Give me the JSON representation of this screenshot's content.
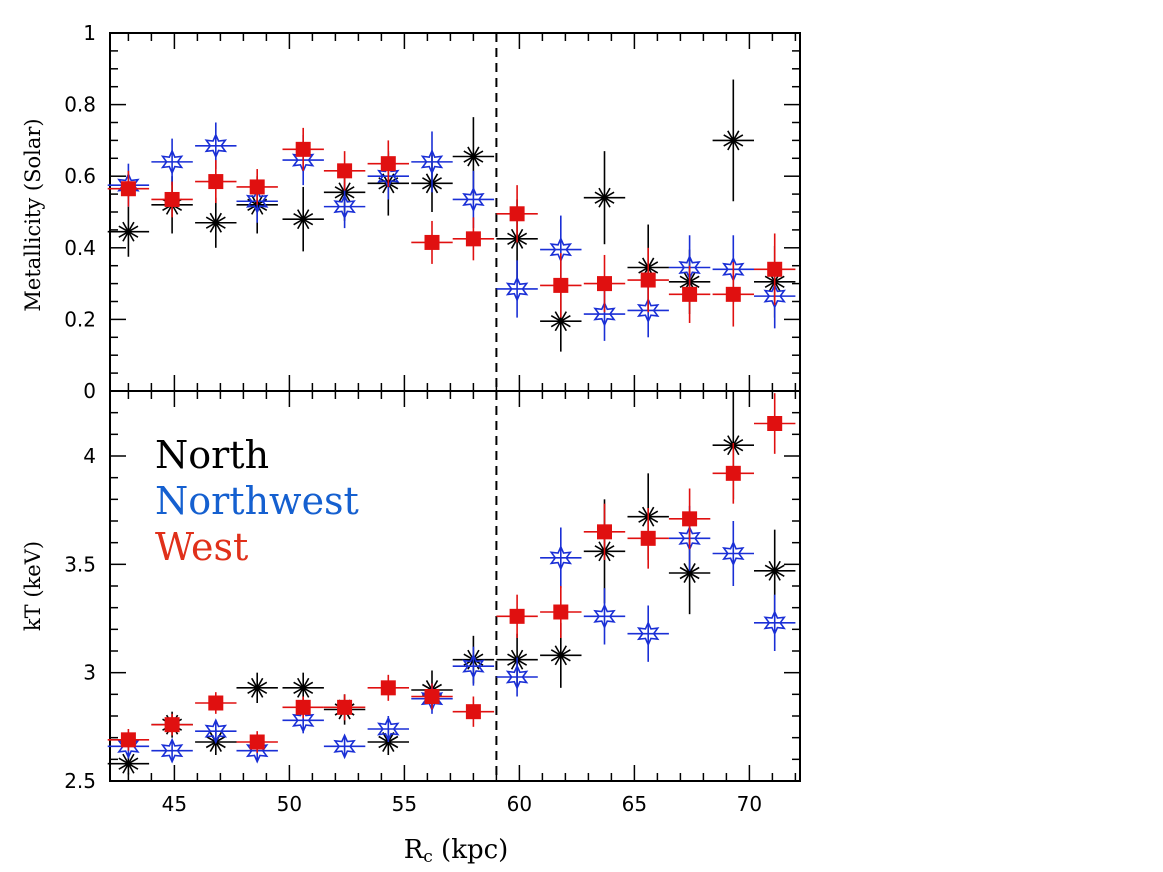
{
  "chart_data": {
    "type": "scatter",
    "x_axis": {
      "label_main": "R",
      "label_sub": "c",
      "label_unit": " (kpc)",
      "xlim": [
        42.2,
        72.2
      ],
      "ticks": [
        45,
        50,
        55,
        60,
        65,
        70
      ],
      "tick_labels": [
        "45",
        "50",
        "55",
        "60",
        "65",
        "70"
      ]
    },
    "vline_x": 59.0,
    "colors": {
      "North": "#000000",
      "Northwest": "#1a2fd6",
      "West": "#e01010"
    },
    "legend": {
      "placement": "upper-left of lower panel",
      "entries": [
        {
          "name": "North",
          "color": "#000000"
        },
        {
          "name": "Northwest",
          "color": "#1560d0"
        },
        {
          "name": "West",
          "color": "#e0301a"
        }
      ]
    },
    "panels": [
      {
        "id": "top",
        "ylabel": "Metallicity (Solar)",
        "ylim": [
          0,
          1
        ],
        "yticks": [
          0,
          0.2,
          0.4,
          0.6,
          0.8,
          1
        ],
        "ytick_labels": [
          "0",
          "0.2",
          "0.4",
          "0.6",
          "0.8",
          "1"
        ],
        "series": [
          {
            "name": "North",
            "marker": "asterisk",
            "color": "#000000",
            "x": [
              43.0,
              44.9,
              46.8,
              48.6,
              50.6,
              52.4,
              54.3,
              56.2,
              58.0,
              59.9,
              61.8,
              63.7,
              65.6,
              67.4,
              69.3,
              71.1
            ],
            "xerr": [
              0.9,
              0.9,
              0.9,
              0.9,
              0.9,
              0.9,
              0.9,
              0.9,
              0.9,
              0.9,
              0.9,
              0.9,
              0.9,
              0.9,
              0.9,
              0.9
            ],
            "y": [
              0.445,
              0.52,
              0.47,
              0.52,
              0.48,
              0.555,
              0.58,
              0.58,
              0.655,
              0.425,
              0.195,
              0.54,
              0.345,
              0.305,
              0.7,
              0.305
            ],
            "yerr": [
              0.07,
              0.08,
              0.07,
              0.08,
              0.09,
              0.08,
              0.09,
              0.08,
              0.11,
              0.11,
              0.085,
              0.13,
              0.12,
              0.09,
              0.17,
              0.1
            ]
          },
          {
            "name": "Northwest",
            "marker": "star",
            "color": "#1a2fd6",
            "x": [
              43.0,
              44.9,
              46.8,
              48.6,
              50.6,
              52.4,
              54.3,
              56.2,
              58.0,
              59.9,
              61.8,
              63.7,
              65.6,
              67.4,
              69.3,
              71.1
            ],
            "xerr": [
              0.9,
              0.9,
              0.9,
              0.9,
              0.9,
              0.9,
              0.9,
              0.9,
              0.9,
              0.9,
              0.9,
              0.9,
              0.9,
              0.9,
              0.9,
              0.9
            ],
            "y": [
              0.575,
              0.64,
              0.685,
              0.53,
              0.645,
              0.515,
              0.6,
              0.64,
              0.535,
              0.285,
              0.395,
              0.215,
              0.225,
              0.345,
              0.34,
              0.265
            ],
            "yerr": [
              0.06,
              0.065,
              0.065,
              0.06,
              0.07,
              0.06,
              0.065,
              0.085,
              0.08,
              0.08,
              0.095,
              0.075,
              0.075,
              0.09,
              0.095,
              0.09
            ]
          },
          {
            "name": "West",
            "marker": "square",
            "color": "#e01010",
            "x": [
              43.0,
              44.9,
              46.8,
              48.6,
              50.6,
              52.4,
              54.3,
              56.2,
              58.0,
              59.9,
              61.8,
              63.7,
              65.6,
              67.4,
              69.3,
              71.1
            ],
            "xerr": [
              0.9,
              0.9,
              0.9,
              0.9,
              0.9,
              0.9,
              0.9,
              0.9,
              0.9,
              0.9,
              0.9,
              0.9,
              0.9,
              0.9,
              0.9,
              0.9
            ],
            "y": [
              0.565,
              0.535,
              0.585,
              0.57,
              0.675,
              0.615,
              0.635,
              0.415,
              0.425,
              0.495,
              0.295,
              0.3,
              0.31,
              0.27,
              0.27,
              0.34
            ],
            "yerr": [
              0.05,
              0.05,
              0.06,
              0.05,
              0.06,
              0.055,
              0.065,
              0.06,
              0.06,
              0.08,
              0.09,
              0.08,
              0.09,
              0.08,
              0.09,
              0.1
            ]
          }
        ]
      },
      {
        "id": "bottom",
        "ylabel": "kT (keV)",
        "ylim": [
          2.5,
          4.3
        ],
        "yticks": [
          2.5,
          3,
          3.5,
          4
        ],
        "ytick_labels": [
          "2.5",
          "3",
          "3.5",
          "4"
        ],
        "series": [
          {
            "name": "North",
            "marker": "asterisk",
            "color": "#000000",
            "x": [
              43.0,
              44.9,
              46.8,
              48.6,
              50.6,
              52.4,
              54.3,
              56.2,
              58.0,
              59.9,
              61.8,
              63.7,
              65.6,
              67.4,
              69.3,
              71.1
            ],
            "xerr": [
              0.9,
              0.9,
              0.9,
              0.9,
              0.9,
              0.9,
              0.9,
              0.9,
              0.9,
              0.9,
              0.9,
              0.9,
              0.9,
              0.9,
              0.9,
              0.9
            ],
            "y": [
              2.58,
              2.76,
              2.68,
              2.93,
              2.93,
              2.83,
              2.68,
              2.92,
              3.06,
              3.06,
              3.08,
              3.56,
              3.72,
              3.46,
              4.05,
              3.47
            ],
            "yerr": [
              0.05,
              0.06,
              0.06,
              0.07,
              0.07,
              0.07,
              0.06,
              0.09,
              0.11,
              0.12,
              0.15,
              0.24,
              0.2,
              0.19,
              0.25,
              0.19
            ]
          },
          {
            "name": "Northwest",
            "marker": "star",
            "color": "#1a2fd6",
            "x": [
              43.0,
              44.9,
              46.8,
              48.6,
              50.6,
              52.4,
              54.3,
              56.2,
              58.0,
              59.9,
              61.8,
              63.7,
              65.6,
              67.4,
              69.3,
              71.1
            ],
            "xerr": [
              0.9,
              0.9,
              0.9,
              0.9,
              0.9,
              0.9,
              0.9,
              0.9,
              0.9,
              0.9,
              0.9,
              0.9,
              0.9,
              0.9,
              0.9,
              0.9
            ],
            "y": [
              2.66,
              2.64,
              2.73,
              2.64,
              2.78,
              2.66,
              2.74,
              2.88,
              3.03,
              2.98,
              3.53,
              3.26,
              3.18,
              3.62,
              3.55,
              3.23
            ],
            "yerr": [
              0.05,
              0.05,
              0.05,
              0.05,
              0.06,
              0.05,
              0.06,
              0.07,
              0.09,
              0.09,
              0.14,
              0.13,
              0.13,
              0.15,
              0.15,
              0.13
            ]
          },
          {
            "name": "West",
            "marker": "square",
            "color": "#e01010",
            "x": [
              43.0,
              44.9,
              46.8,
              48.6,
              50.6,
              52.4,
              54.3,
              56.2,
              58.0,
              59.9,
              61.8,
              63.7,
              65.6,
              67.4,
              69.3,
              71.1
            ],
            "xerr": [
              0.9,
              0.9,
              0.9,
              0.9,
              0.9,
              0.9,
              0.9,
              0.9,
              0.9,
              0.9,
              0.9,
              0.9,
              0.9,
              0.9,
              0.9,
              0.9
            ],
            "y": [
              2.69,
              2.76,
              2.86,
              2.68,
              2.84,
              2.84,
              2.93,
              2.89,
              2.82,
              3.26,
              3.28,
              3.65,
              3.62,
              3.71,
              3.92,
              4.15
            ],
            "yerr": [
              0.05,
              0.05,
              0.05,
              0.05,
              0.05,
              0.06,
              0.06,
              0.06,
              0.07,
              0.1,
              0.12,
              0.13,
              0.14,
              0.14,
              0.14,
              0.14
            ]
          }
        ]
      }
    ]
  }
}
